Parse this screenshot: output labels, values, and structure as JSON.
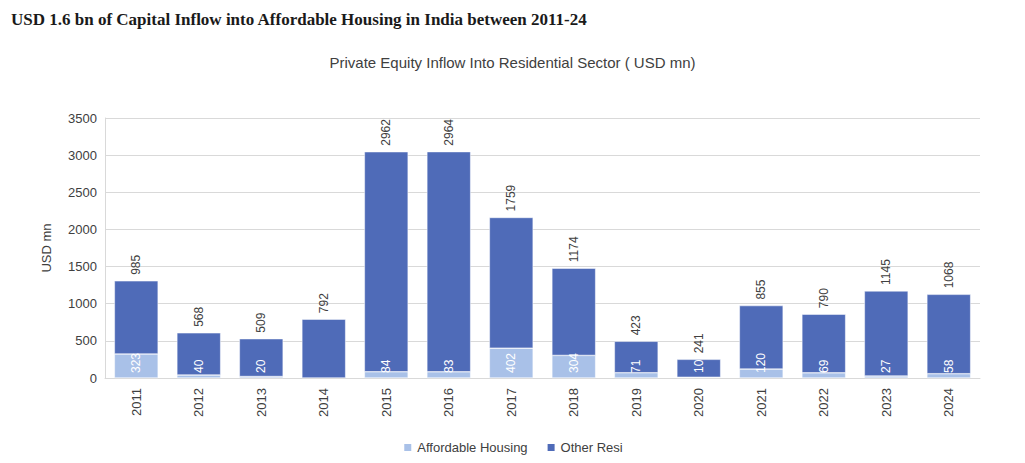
{
  "chart_data": {
    "type": "bar",
    "title": "USD 1.6 bn of Capital Inflow into Affordable Housing in India between 2011-24",
    "subtitle": "Private Equity Inflow Into Residential Sector ( USD mn)",
    "ylabel": "USD mn",
    "categories": [
      "2011",
      "2012",
      "2013",
      "2014",
      "2015",
      "2016",
      "2017",
      "2018",
      "2019",
      "2020",
      "2021",
      "2022",
      "2023",
      "2024"
    ],
    "series": [
      {
        "name": "Affordable Housing",
        "color": "#a9c1e8",
        "values": [
          323,
          40,
          20,
          null,
          84,
          83,
          402,
          304,
          71,
          10,
          120,
          69,
          27,
          58
        ]
      },
      {
        "name": "Other Resi",
        "color": "#4f6bb8",
        "values": [
          985,
          568,
          509,
          792,
          2962,
          2964,
          1759,
          1174,
          423,
          241,
          855,
          790,
          1145,
          1068
        ]
      }
    ],
    "stacked": true,
    "data_labels": true,
    "legend": "bottom",
    "grid": true,
    "ylim": [
      0,
      3500
    ],
    "yticks": [
      0,
      500,
      1000,
      1500,
      2000,
      2500,
      3000,
      3500
    ]
  }
}
